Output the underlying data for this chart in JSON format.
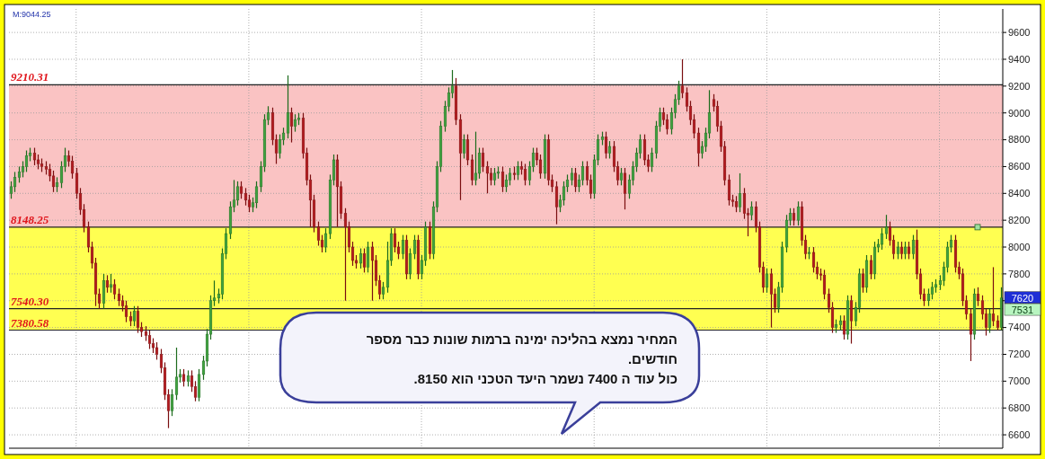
{
  "chart_data": {
    "type": "candlestick",
    "categories": [
      null,
      null,
      null,
      null,
      null,
      null,
      null,
      null,
      null,
      null,
      null,
      null,
      null,
      null,
      null,
      null,
      null,
      null,
      null,
      null,
      null,
      null,
      null,
      null,
      null,
      null,
      null,
      null,
      null,
      null,
      null,
      null,
      null,
      null,
      null,
      null,
      null,
      null,
      null,
      null,
      null,
      null,
      null,
      null,
      null,
      null,
      null,
      null,
      null,
      null,
      null,
      null,
      null,
      null,
      null,
      null,
      null,
      null,
      null,
      null,
      null,
      null,
      null,
      null,
      null,
      null,
      null,
      null,
      null,
      null,
      null,
      null,
      null,
      null,
      null,
      null,
      null,
      null,
      null,
      null,
      null,
      null,
      null,
      null,
      null,
      null,
      null,
      null,
      null,
      null,
      null,
      null,
      null,
      null,
      null,
      null,
      null,
      null,
      null,
      null,
      null,
      null,
      null,
      null,
      null,
      null,
      null,
      null,
      null,
      null,
      null,
      null,
      null,
      null,
      null,
      null,
      null,
      null,
      null,
      null,
      null,
      null,
      null,
      null,
      null,
      null,
      null,
      null,
      null,
      null,
      null,
      null,
      null,
      null,
      null,
      null,
      null,
      null,
      null,
      null,
      null,
      null,
      null,
      null,
      null,
      null,
      null,
      null,
      null,
      null,
      null,
      null,
      null,
      null,
      null,
      null,
      null,
      null,
      null,
      null,
      null,
      null,
      null,
      null,
      null,
      null,
      null,
      null,
      null,
      null,
      null,
      null,
      null,
      null,
      null,
      null,
      null,
      null,
      null,
      null,
      null,
      null,
      null,
      null,
      null,
      null,
      null,
      null,
      null,
      null,
      null,
      null,
      null,
      null,
      null,
      null,
      null,
      null,
      null,
      null,
      null,
      null,
      null,
      null,
      null,
      null,
      null,
      null,
      null,
      null,
      null,
      null,
      null,
      null,
      null,
      null,
      null,
      null,
      null,
      null,
      null,
      null,
      null,
      null,
      null,
      null,
      null,
      null,
      null,
      null,
      null,
      null,
      null,
      null,
      null,
      null,
      null,
      null,
      null,
      null,
      null,
      null,
      null,
      null,
      null,
      null,
      null,
      null,
      null,
      null,
      null,
      null,
      null,
      null,
      null,
      null,
      null,
      null,
      null
    ],
    "ohlc": [
      [
        8400,
        8490,
        8360,
        8450
      ],
      [
        8450,
        8560,
        8410,
        8520
      ],
      [
        8520,
        8600,
        8480,
        8560
      ],
      [
        8560,
        8640,
        8520,
        8600
      ],
      [
        8600,
        8720,
        8560,
        8680
      ],
      [
        8680,
        8740,
        8640,
        8700
      ],
      [
        8700,
        8740,
        8610,
        8650
      ],
      [
        8650,
        8690,
        8580,
        8620
      ],
      [
        8620,
        8660,
        8560,
        8600
      ],
      [
        8600,
        8640,
        8540,
        8580
      ],
      [
        8580,
        8620,
        8490,
        8530
      ],
      [
        8530,
        8570,
        8410,
        8450
      ],
      [
        8450,
        8520,
        8410,
        8480
      ],
      [
        8480,
        8640,
        8440,
        8600
      ],
      [
        8600,
        8740,
        8560,
        8680
      ],
      [
        8680,
        8720,
        8600,
        8640
      ],
      [
        8640,
        8680,
        8510,
        8550
      ],
      [
        8550,
        8590,
        8360,
        8400
      ],
      [
        8400,
        8440,
        8240,
        8280
      ],
      [
        8280,
        8320,
        8110,
        8150
      ],
      [
        8150,
        8190,
        7960,
        8000
      ],
      [
        8000,
        8040,
        7840,
        7880
      ],
      [
        7880,
        7920,
        7560,
        7650
      ],
      [
        7650,
        7690,
        7540,
        7580
      ],
      [
        7580,
        7800,
        7540,
        7750
      ],
      [
        7750,
        7790,
        7660,
        7700
      ],
      [
        7700,
        7800,
        7660,
        7720
      ],
      [
        7720,
        7760,
        7610,
        7650
      ],
      [
        7650,
        7690,
        7560,
        7600
      ],
      [
        7600,
        7640,
        7520,
        7560
      ],
      [
        7560,
        7600,
        7440,
        7480
      ],
      [
        7480,
        7520,
        7410,
        7450
      ],
      [
        7450,
        7560,
        7410,
        7520
      ],
      [
        7520,
        7560,
        7360,
        7400
      ],
      [
        7400,
        7440,
        7330,
        7370
      ],
      [
        7370,
        7410,
        7300,
        7340
      ],
      [
        7340,
        7380,
        7240,
        7280
      ],
      [
        7280,
        7320,
        7210,
        7250
      ],
      [
        7250,
        7290,
        7160,
        7200
      ],
      [
        7200,
        7240,
        7060,
        7100
      ],
      [
        7100,
        7140,
        6860,
        6900
      ],
      [
        6900,
        6940,
        6650,
        6780
      ],
      [
        6780,
        6940,
        6740,
        6900
      ],
      [
        6900,
        7250,
        6860,
        7030
      ],
      [
        7030,
        7090,
        6990,
        7050
      ],
      [
        7050,
        7090,
        6960,
        7000
      ],
      [
        7000,
        7080,
        6960,
        7040
      ],
      [
        7040,
        7080,
        6920,
        6960
      ],
      [
        6960,
        7000,
        6850,
        6880
      ],
      [
        6880,
        7090,
        6850,
        7050
      ],
      [
        7050,
        7190,
        7010,
        7150
      ],
      [
        7150,
        7390,
        7110,
        7350
      ],
      [
        7350,
        7640,
        7310,
        7600
      ],
      [
        7600,
        7750,
        7560,
        7620
      ],
      [
        7620,
        7690,
        7580,
        7650
      ],
      [
        7650,
        7990,
        7610,
        7950
      ],
      [
        7950,
        8140,
        7910,
        8100
      ],
      [
        8100,
        8340,
        8060,
        8300
      ],
      [
        8300,
        8500,
        8260,
        8350
      ],
      [
        8350,
        8490,
        8310,
        8450
      ],
      [
        8450,
        8490,
        8360,
        8400
      ],
      [
        8400,
        8440,
        8310,
        8350
      ],
      [
        8350,
        8390,
        8260,
        8300
      ],
      [
        8300,
        8370,
        8260,
        8330
      ],
      [
        8330,
        8490,
        8290,
        8450
      ],
      [
        8450,
        8640,
        8410,
        8600
      ],
      [
        8600,
        8990,
        8560,
        8950
      ],
      [
        8950,
        9050,
        8910,
        9000
      ],
      [
        9000,
        9040,
        8760,
        8800
      ],
      [
        8800,
        8840,
        8620,
        8700
      ],
      [
        8700,
        8840,
        8660,
        8800
      ],
      [
        8800,
        8890,
        8760,
        8850
      ],
      [
        8850,
        9280,
        8810,
        9000
      ],
      [
        9000,
        9040,
        8780,
        8900
      ],
      [
        8900,
        8990,
        8860,
        8950
      ],
      [
        8950,
        9000,
        8910,
        8960
      ],
      [
        8960,
        9000,
        8660,
        8700
      ],
      [
        8700,
        8740,
        8460,
        8500
      ],
      [
        8500,
        8540,
        8150,
        8350
      ],
      [
        8350,
        8390,
        8110,
        8150
      ],
      [
        8150,
        8190,
        8010,
        8050
      ],
      [
        8050,
        8090,
        7960,
        8000
      ],
      [
        8000,
        8140,
        7960,
        8100
      ],
      [
        8100,
        8540,
        8060,
        8500
      ],
      [
        8500,
        8690,
        8460,
        8650
      ],
      [
        8650,
        8690,
        8150,
        8450
      ],
      [
        8450,
        8490,
        8210,
        8250
      ],
      [
        8250,
        8290,
        7600,
        8150
      ],
      [
        8150,
        8190,
        7960,
        8000
      ],
      [
        8000,
        8040,
        7860,
        7900
      ],
      [
        7900,
        7940,
        7840,
        7880
      ],
      [
        7880,
        7990,
        7840,
        7950
      ],
      [
        7950,
        7990,
        7810,
        7850
      ],
      [
        7850,
        8040,
        7810,
        8000
      ],
      [
        8000,
        8040,
        7600,
        7900
      ],
      [
        7900,
        7940,
        7710,
        7750
      ],
      [
        7750,
        7790,
        7610,
        7650
      ],
      [
        7650,
        7740,
        7610,
        7700
      ],
      [
        7700,
        8040,
        7660,
        7900
      ],
      [
        7900,
        8140,
        7860,
        8100
      ],
      [
        8100,
        8140,
        7960,
        8000
      ],
      [
        8000,
        8040,
        7910,
        7950
      ],
      [
        7950,
        8090,
        7910,
        8050
      ],
      [
        8050,
        8090,
        7760,
        7800
      ],
      [
        7800,
        7990,
        7760,
        7950
      ],
      [
        7950,
        8090,
        7910,
        8050
      ],
      [
        8050,
        8090,
        7760,
        7800
      ],
      [
        7800,
        7940,
        7760,
        7900
      ],
      [
        7900,
        8190,
        7860,
        8150
      ],
      [
        8150,
        8190,
        7910,
        7950
      ],
      [
        7950,
        8340,
        7910,
        8300
      ],
      [
        8300,
        8640,
        8260,
        8600
      ],
      [
        8600,
        8940,
        8560,
        8900
      ],
      [
        8900,
        9090,
        8860,
        9050
      ],
      [
        9050,
        9190,
        9010,
        9150
      ],
      [
        9150,
        9320,
        9110,
        9200
      ],
      [
        9200,
        9260,
        8910,
        8950
      ],
      [
        8950,
        8990,
        8350,
        8700
      ],
      [
        8700,
        8840,
        8660,
        8800
      ],
      [
        8800,
        8840,
        8610,
        8650
      ],
      [
        8650,
        8690,
        8460,
        8500
      ],
      [
        8500,
        8860,
        8460,
        8550
      ],
      [
        8550,
        8740,
        8510,
        8700
      ],
      [
        8700,
        8740,
        8560,
        8600
      ],
      [
        8600,
        8640,
        8400,
        8550
      ],
      [
        8550,
        8590,
        8460,
        8500
      ],
      [
        8500,
        8590,
        8460,
        8550
      ],
      [
        8550,
        8600,
        8510,
        8560
      ],
      [
        8560,
        8600,
        8410,
        8450
      ],
      [
        8450,
        8540,
        8410,
        8500
      ],
      [
        8500,
        8590,
        8460,
        8550
      ],
      [
        8550,
        8600,
        8500,
        8540
      ],
      [
        8540,
        8640,
        8500,
        8600
      ],
      [
        8600,
        8640,
        8540,
        8580
      ],
      [
        8580,
        8620,
        8460,
        8500
      ],
      [
        8500,
        8640,
        8460,
        8600
      ],
      [
        8600,
        8740,
        8560,
        8700
      ],
      [
        8700,
        8740,
        8610,
        8650
      ],
      [
        8650,
        8690,
        8510,
        8550
      ],
      [
        8550,
        8840,
        8510,
        8800
      ],
      [
        8800,
        8840,
        8460,
        8500
      ],
      [
        8500,
        8540,
        8410,
        8450
      ],
      [
        8450,
        8490,
        8170,
        8300
      ],
      [
        8300,
        8390,
        8260,
        8350
      ],
      [
        8350,
        8490,
        8310,
        8450
      ],
      [
        8450,
        8540,
        8410,
        8500
      ],
      [
        8500,
        8590,
        8460,
        8550
      ],
      [
        8550,
        8590,
        8410,
        8450
      ],
      [
        8450,
        8540,
        8410,
        8500
      ],
      [
        8500,
        8640,
        8460,
        8600
      ],
      [
        8600,
        8640,
        8460,
        8500
      ],
      [
        8500,
        8540,
        8360,
        8400
      ],
      [
        8400,
        8690,
        8360,
        8650
      ],
      [
        8650,
        8840,
        8610,
        8800
      ],
      [
        8800,
        8860,
        8760,
        8820
      ],
      [
        8820,
        8860,
        8660,
        8700
      ],
      [
        8700,
        8790,
        8660,
        8750
      ],
      [
        8750,
        8790,
        8560,
        8600
      ],
      [
        8600,
        8640,
        8460,
        8500
      ],
      [
        8500,
        8590,
        8460,
        8550
      ],
      [
        8550,
        8590,
        8280,
        8400
      ],
      [
        8400,
        8540,
        8360,
        8500
      ],
      [
        8500,
        8640,
        8460,
        8600
      ],
      [
        8600,
        8740,
        8560,
        8700
      ],
      [
        8700,
        8840,
        8660,
        8800
      ],
      [
        8800,
        8840,
        8610,
        8650
      ],
      [
        8650,
        8690,
        8560,
        8600
      ],
      [
        8600,
        8740,
        8560,
        8700
      ],
      [
        8700,
        8940,
        8660,
        8900
      ],
      [
        8900,
        9040,
        8860,
        9000
      ],
      [
        9000,
        9040,
        8910,
        8950
      ],
      [
        8950,
        8990,
        8840,
        8880
      ],
      [
        8880,
        9040,
        8840,
        9000
      ],
      [
        9000,
        9140,
        8960,
        9100
      ],
      [
        9100,
        9240,
        9060,
        9200
      ],
      [
        9200,
        9400,
        9110,
        9150
      ],
      [
        9150,
        9190,
        9010,
        9050
      ],
      [
        9050,
        9090,
        8910,
        8950
      ],
      [
        8950,
        8990,
        8810,
        8850
      ],
      [
        8850,
        8890,
        8600,
        8700
      ],
      [
        8700,
        8790,
        8660,
        8750
      ],
      [
        8750,
        8890,
        8710,
        8850
      ],
      [
        8850,
        9170,
        8810,
        9000
      ],
      [
        9100,
        9140,
        9010,
        9050
      ],
      [
        9050,
        9090,
        8860,
        8900
      ],
      [
        8900,
        8940,
        8710,
        8750
      ],
      [
        8750,
        8790,
        8460,
        8500
      ],
      [
        8500,
        8540,
        8310,
        8350
      ],
      [
        8350,
        8390,
        8300,
        8340
      ],
      [
        8340,
        8380,
        8260,
        8300
      ],
      [
        8300,
        8550,
        8260,
        8400
      ],
      [
        8400,
        8440,
        8210,
        8250
      ],
      [
        8250,
        8290,
        8080,
        8240
      ],
      [
        8240,
        8340,
        8200,
        8300
      ],
      [
        8300,
        8340,
        8110,
        8150
      ],
      [
        8150,
        8190,
        7810,
        7850
      ],
      [
        7850,
        7890,
        7660,
        7700
      ],
      [
        7700,
        7840,
        7660,
        7800
      ],
      [
        7800,
        7840,
        7400,
        7650
      ],
      [
        7650,
        7690,
        7510,
        7550
      ],
      [
        7550,
        7740,
        7510,
        7700
      ],
      [
        7700,
        8040,
        7660,
        8000
      ],
      [
        8000,
        8240,
        7960,
        8200
      ],
      [
        8200,
        8290,
        8160,
        8250
      ],
      [
        8250,
        8290,
        8160,
        8200
      ],
      [
        8200,
        8340,
        8160,
        8300
      ],
      [
        8300,
        8340,
        8010,
        8050
      ],
      [
        8050,
        8090,
        7910,
        7950
      ],
      [
        7950,
        8000,
        7910,
        7960
      ],
      [
        7960,
        8000,
        7810,
        7850
      ],
      [
        7850,
        7890,
        7760,
        7800
      ],
      [
        7800,
        7840,
        7750,
        7790
      ],
      [
        7790,
        7830,
        7610,
        7650
      ],
      [
        7650,
        7690,
        7510,
        7550
      ],
      [
        7550,
        7590,
        7360,
        7400
      ],
      [
        7400,
        7460,
        7360,
        7420
      ],
      [
        7420,
        7490,
        7380,
        7450
      ],
      [
        7450,
        7490,
        7310,
        7350
      ],
      [
        7350,
        7640,
        7310,
        7600
      ],
      [
        7600,
        7640,
        7280,
        7450
      ],
      [
        7450,
        7590,
        7410,
        7550
      ],
      [
        7550,
        7840,
        7510,
        7800
      ],
      [
        7800,
        7840,
        7660,
        7700
      ],
      [
        7700,
        7940,
        7660,
        7900
      ],
      [
        7900,
        7940,
        7760,
        7800
      ],
      [
        7800,
        8040,
        7760,
        8000
      ],
      [
        8000,
        8060,
        7960,
        8020
      ],
      [
        8020,
        8140,
        7980,
        8100
      ],
      [
        8100,
        8240,
        8060,
        8150
      ],
      [
        8150,
        8190,
        8010,
        8050
      ],
      [
        8050,
        8090,
        7910,
        7950
      ],
      [
        7950,
        8040,
        7910,
        8000
      ],
      [
        8000,
        8040,
        7910,
        7950
      ],
      [
        7950,
        8040,
        7910,
        8000
      ],
      [
        8000,
        8040,
        7910,
        7950
      ],
      [
        7950,
        8090,
        7910,
        8050
      ],
      [
        8050,
        8130,
        7760,
        7800
      ],
      [
        7800,
        7840,
        7610,
        7650
      ],
      [
        7650,
        7690,
        7560,
        7600
      ],
      [
        7600,
        7690,
        7560,
        7650
      ],
      [
        7650,
        7740,
        7610,
        7700
      ],
      [
        7700,
        7760,
        7660,
        7720
      ],
      [
        7720,
        7790,
        7680,
        7750
      ],
      [
        7750,
        7890,
        7710,
        7850
      ],
      [
        7850,
        8040,
        7810,
        8000
      ],
      [
        8000,
        8090,
        7960,
        8050
      ],
      [
        8050,
        8090,
        7810,
        7850
      ],
      [
        7850,
        7890,
        7760,
        7800
      ],
      [
        7800,
        7840,
        7560,
        7600
      ],
      [
        7600,
        7640,
        7460,
        7500
      ],
      [
        7500,
        7540,
        7150,
        7350
      ],
      [
        7350,
        7690,
        7310,
        7650
      ],
      [
        7650,
        7700,
        7560,
        7600
      ],
      [
        7600,
        7640,
        7460,
        7500
      ],
      [
        7500,
        7540,
        7340,
        7400
      ],
      [
        7400,
        7540,
        7360,
        7500
      ],
      [
        7500,
        7850,
        7410,
        7450
      ],
      [
        7450,
        7490,
        7380,
        7400
      ],
      [
        7400,
        7700,
        7380,
        7620
      ]
    ],
    "ylim": [
      6500,
      9775
    ],
    "yticks": [
      6600,
      6800,
      7000,
      7200,
      7400,
      7600,
      7800,
      8000,
      8200,
      8400,
      8600,
      8800,
      9000,
      9200,
      9400,
      9600
    ],
    "grid": true,
    "ref_lines": [
      {
        "axis": "y",
        "value": 9210.31,
        "label": "9210.31"
      },
      {
        "axis": "y",
        "value": 8148.25,
        "label": "8148.25"
      },
      {
        "axis": "y",
        "value": 7540.3,
        "label": "7540.30"
      },
      {
        "axis": "y",
        "value": 7380.58,
        "label": "7380.58"
      }
    ],
    "bands": [
      {
        "axis": "y",
        "from": 8148.25,
        "to": 9210.31,
        "color": "#f9b8b8"
      },
      {
        "axis": "y",
        "from": 7380.58,
        "to": 8148.25,
        "color": "#ffff33"
      }
    ],
    "annotations": [
      "M:9044.25",
      "המחיר נמצא בהליכה ימינה ברמות שונות כבר מספר חודשים.",
      "כול עוד ה 7400 נשמר היעד הטכני הוא 8150.",
      {
        "text": "7620",
        "y": 7620
      },
      {
        "text": "7531",
        "y": 7531
      }
    ]
  }
}
